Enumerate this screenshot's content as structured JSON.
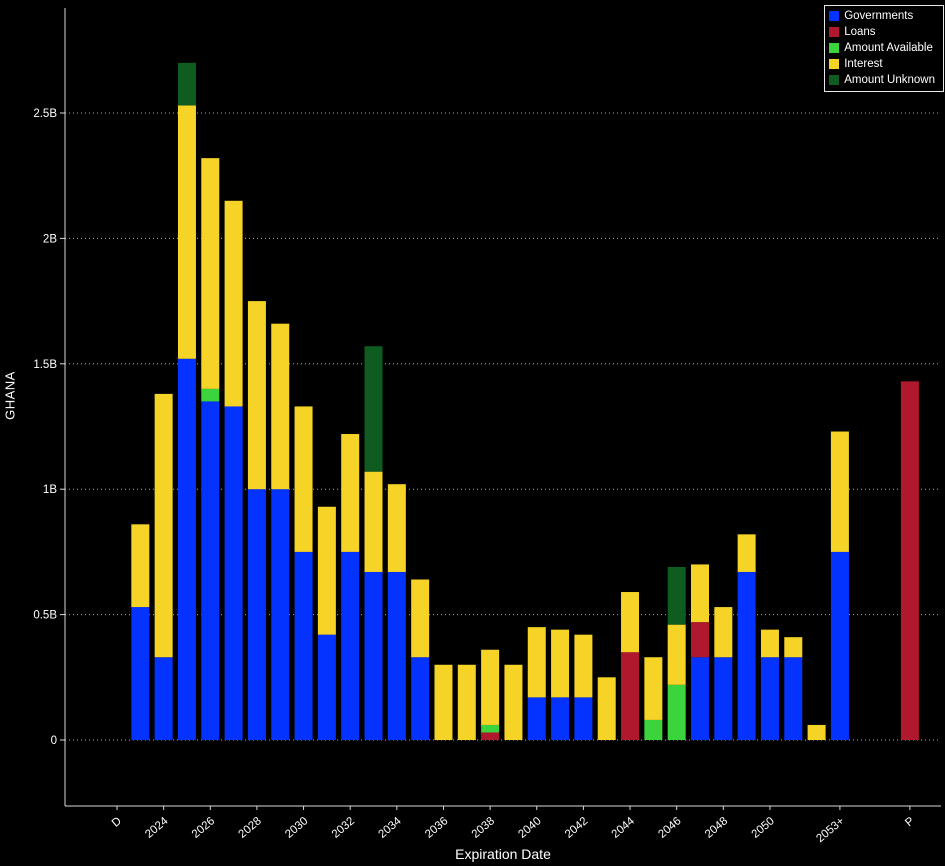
{
  "app": {
    "type": "terminal-debt-distribution-chart"
  },
  "colors": {
    "background": "#000000",
    "text": "#ffffff",
    "grid": "#aaaaaa",
    "axis": "#d8d8d8",
    "legend_border": "#e8e8e8"
  },
  "chart_data": {
    "type": "bar",
    "stacked": true,
    "title": "",
    "ylabel": "GHANA",
    "xlabel": "Expiration Date",
    "unit": "B",
    "ylim": [
      0,
      2.9
    ],
    "grid": "horizontal-dotted",
    "legend_position": "top-right",
    "y_ticks": [
      {
        "value": 0,
        "label": "0"
      },
      {
        "value": 0.5,
        "label": "0.5B"
      },
      {
        "value": 1.0,
        "label": "1B"
      },
      {
        "value": 1.5,
        "label": "1.5B"
      },
      {
        "value": 2.0,
        "label": "2B"
      },
      {
        "value": 2.5,
        "label": "2.5B"
      }
    ],
    "series": [
      {
        "key": "governments",
        "name": "Governments",
        "color": "#0433ff"
      },
      {
        "key": "loans",
        "name": "Loans",
        "color": "#b0182d"
      },
      {
        "key": "amount_available",
        "name": "Amount Available",
        "color": "#3cd43c"
      },
      {
        "key": "interest",
        "name": "Interest",
        "color": "#f5d327"
      },
      {
        "key": "amount_unknown",
        "name": "Amount Unknown",
        "color": "#0e5c20"
      }
    ],
    "x_tick_categories": [
      "D",
      "2024",
      "2026",
      "2028",
      "2030",
      "2032",
      "2034",
      "2036",
      "2038",
      "2040",
      "2042",
      "2044",
      "2046",
      "2048",
      "2050",
      "2053+",
      "P"
    ],
    "bars": [
      {
        "category": "D",
        "values": {}
      },
      {
        "category": "2023",
        "values": {
          "governments": 0.53,
          "interest": 0.33
        }
      },
      {
        "category": "2024",
        "values": {
          "governments": 0.33,
          "interest": 1.05
        }
      },
      {
        "category": "2025",
        "values": {
          "governments": 1.52,
          "interest": 1.01,
          "amount_unknown": 0.17
        }
      },
      {
        "category": "2026",
        "values": {
          "governments": 1.35,
          "amount_available": 0.05,
          "interest": 0.92
        }
      },
      {
        "category": "2027",
        "values": {
          "governments": 1.33,
          "interest": 0.82
        }
      },
      {
        "category": "2028",
        "values": {
          "governments": 1.0,
          "interest": 0.75
        }
      },
      {
        "category": "2029",
        "values": {
          "governments": 1.0,
          "interest": 0.66
        }
      },
      {
        "category": "2030",
        "values": {
          "governments": 0.75,
          "interest": 0.58
        }
      },
      {
        "category": "2031",
        "values": {
          "governments": 0.42,
          "interest": 0.51
        }
      },
      {
        "category": "2032",
        "values": {
          "governments": 0.75,
          "interest": 0.47
        }
      },
      {
        "category": "2033",
        "values": {
          "governments": 0.67,
          "interest": 0.4,
          "amount_unknown": 0.5
        }
      },
      {
        "category": "2034",
        "values": {
          "governments": 0.67,
          "interest": 0.35
        }
      },
      {
        "category": "2035",
        "values": {
          "governments": 0.33,
          "interest": 0.31
        }
      },
      {
        "category": "2036",
        "values": {
          "interest": 0.3
        }
      },
      {
        "category": "2037",
        "values": {
          "interest": 0.3
        }
      },
      {
        "category": "2038",
        "values": {
          "loans": 0.03,
          "amount_available": 0.03,
          "interest": 0.3
        }
      },
      {
        "category": "2039",
        "values": {
          "interest": 0.3
        }
      },
      {
        "category": "2040",
        "values": {
          "governments": 0.17,
          "interest": 0.28
        }
      },
      {
        "category": "2041",
        "values": {
          "governments": 0.17,
          "interest": 0.27
        }
      },
      {
        "category": "2042",
        "values": {
          "governments": 0.17,
          "interest": 0.25
        }
      },
      {
        "category": "2043",
        "values": {
          "interest": 0.25
        }
      },
      {
        "category": "2044",
        "values": {
          "loans": 0.35,
          "interest": 0.24
        }
      },
      {
        "category": "2045",
        "values": {
          "amount_available": 0.08,
          "interest": 0.25
        }
      },
      {
        "category": "2046",
        "values": {
          "amount_available": 0.22,
          "interest": 0.24,
          "amount_unknown": 0.23
        }
      },
      {
        "category": "2047",
        "values": {
          "governments": 0.33,
          "loans": 0.14,
          "interest": 0.23
        }
      },
      {
        "category": "2048",
        "values": {
          "governments": 0.33,
          "interest": 0.2
        }
      },
      {
        "category": "2049",
        "values": {
          "governments": 0.67,
          "interest": 0.15
        }
      },
      {
        "category": "2050",
        "values": {
          "governments": 0.33,
          "interest": 0.11
        }
      },
      {
        "category": "2051",
        "values": {
          "governments": 0.33,
          "interest": 0.08
        }
      },
      {
        "category": "2052",
        "values": {
          "interest": 0.06
        }
      },
      {
        "category": "2053+",
        "values": {
          "governments": 0.75,
          "interest": 0.48
        }
      },
      {
        "category": "",
        "values": {}
      },
      {
        "category": "",
        "values": {}
      },
      {
        "category": "P",
        "values": {
          "loans": 1.43
        }
      }
    ]
  }
}
